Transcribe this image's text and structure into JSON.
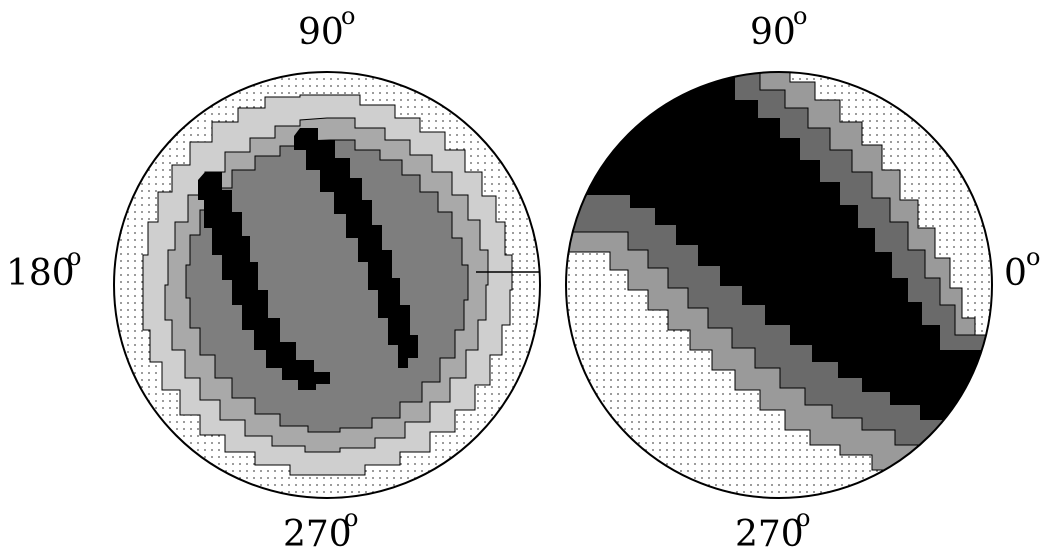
{
  "panels": [
    {
      "top_label": "90",
      "bottom_label": "270",
      "left_label": "180",
      "right_label": "",
      "degree_mark": "o",
      "pattern": "double-crescent",
      "fills": [
        "#ffffff",
        "#dcdcdc",
        "#bdbdbd",
        "#8a8a8a",
        "#000000"
      ]
    },
    {
      "top_label": "90",
      "bottom_label": "270",
      "left_label": "",
      "right_label": "0",
      "degree_mark": "o",
      "pattern": "diagonal-band",
      "fills": [
        "#ffffff",
        "#dcdcdc",
        "#8a8a8a",
        "#5a5a5a",
        "#000000"
      ]
    }
  ],
  "styles": {
    "outline": "#000000",
    "background": "#ffffff",
    "dot": "#555555"
  }
}
